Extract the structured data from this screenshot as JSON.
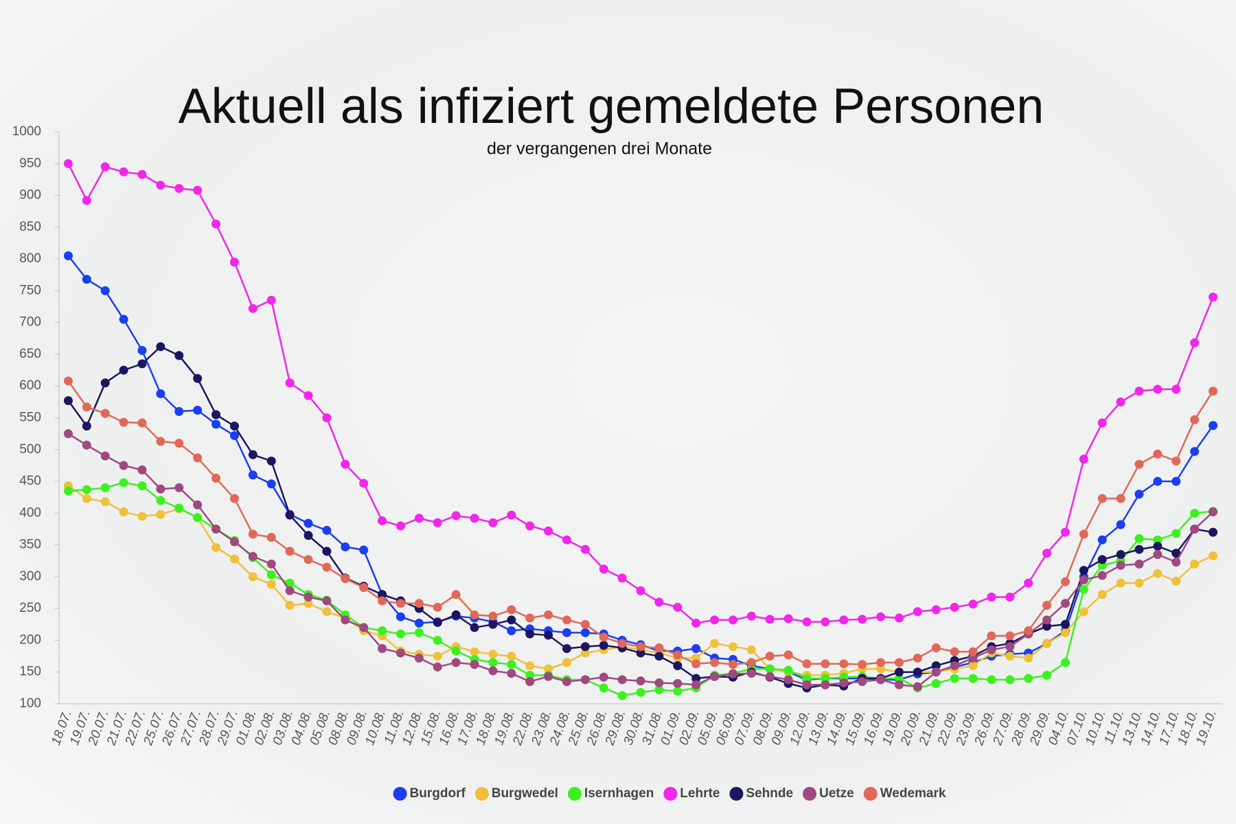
{
  "chart_data": {
    "type": "line",
    "title": "Aktuell als infiziert gemeldete Personen",
    "subtitle": "der vergangenen drei Monate",
    "categories": [
      "18.07.",
      "19.07.",
      "20.07.",
      "21.07.",
      "22.07.",
      "25.07.",
      "26.07.",
      "27.07.",
      "28.07.",
      "29.07.",
      "01.08.",
      "02.08.",
      "03.08.",
      "04.08.",
      "05.08.",
      "08.08.",
      "09.08.",
      "10.08.",
      "11.08.",
      "12.08.",
      "15.08.",
      "16.08.",
      "17.08.",
      "18.08.",
      "19.08.",
      "22.08.",
      "23.08.",
      "24.08.",
      "25.08.",
      "26.08.",
      "29.08.",
      "30.08.",
      "31.08.",
      "01.09.",
      "02.09.",
      "05.09.",
      "06.09.",
      "07.09.",
      "08.09.",
      "09.09.",
      "12.09.",
      "13.09.",
      "14.09.",
      "15.09.",
      "16.09.",
      "19.09.",
      "20.09.",
      "21.09.",
      "22.09.",
      "23.09.",
      "26.09.",
      "27.09.",
      "28.09.",
      "29.09.",
      "04.10.",
      "07.10.",
      "10.10.",
      "11.10.",
      "13.10.",
      "14.10.",
      "17.10.",
      "18.10.",
      "19.10."
    ],
    "series": [
      {
        "name": "Burgdorf",
        "color": "#1a3ef0",
        "values": [
          805,
          768,
          750,
          705,
          656,
          588,
          560,
          562,
          540,
          522,
          460,
          446,
          398,
          384,
          373,
          347,
          342,
          272,
          237,
          227,
          229,
          238,
          235,
          229,
          215,
          218,
          215,
          212,
          212,
          210,
          200,
          193,
          183,
          183,
          187,
          172,
          170,
          160,
          155,
          150,
          138,
          140,
          140,
          140,
          138,
          138,
          147,
          150,
          158,
          165,
          175,
          178,
          180,
          195,
          215,
          300,
          358,
          382,
          430,
          450,
          450,
          497,
          538
        ]
      },
      {
        "name": "Burgwedel",
        "color": "#f0c03a",
        "values": [
          443,
          423,
          418,
          402,
          395,
          398,
          407,
          393,
          346,
          328,
          300,
          288,
          255,
          258,
          245,
          235,
          215,
          207,
          183,
          178,
          175,
          190,
          182,
          178,
          175,
          160,
          155,
          165,
          180,
          185,
          190,
          185,
          180,
          172,
          172,
          195,
          190,
          185,
          155,
          150,
          145,
          145,
          148,
          155,
          155,
          150,
          150,
          150,
          155,
          160,
          180,
          175,
          172,
          195,
          212,
          245,
          272,
          290,
          290,
          305,
          293,
          320,
          333
        ]
      },
      {
        "name": "Isernhagen",
        "color": "#3cf020",
        "values": [
          435,
          437,
          440,
          448,
          443,
          420,
          408,
          393,
          375,
          357,
          330,
          303,
          290,
          272,
          263,
          240,
          220,
          215,
          210,
          212,
          200,
          183,
          170,
          165,
          162,
          145,
          145,
          138,
          138,
          125,
          113,
          118,
          122,
          120,
          125,
          145,
          148,
          155,
          155,
          153,
          140,
          140,
          142,
          143,
          140,
          140,
          125,
          132,
          140,
          140,
          138,
          138,
          140,
          145,
          165,
          280,
          318,
          325,
          360,
          358,
          368,
          400,
          403
        ]
      },
      {
        "name": "Lehrte",
        "color": "#f026e8",
        "values": [
          950,
          892,
          945,
          937,
          933,
          916,
          911,
          908,
          855,
          795,
          722,
          735,
          605,
          585,
          550,
          477,
          447,
          388,
          380,
          392,
          385,
          396,
          392,
          385,
          397,
          380,
          372,
          358,
          343,
          312,
          298,
          278,
          260,
          252,
          227,
          232,
          232,
          238,
          233,
          234,
          229,
          229,
          232,
          233,
          237,
          235,
          245,
          248,
          252,
          257,
          268,
          268,
          290,
          337,
          370,
          485,
          542,
          575,
          592,
          595,
          595,
          668,
          740
        ]
      },
      {
        "name": "Sehnde",
        "color": "#1c1660",
        "values": [
          577,
          537,
          605,
          625,
          635,
          662,
          648,
          612,
          555,
          537,
          492,
          482,
          397,
          365,
          340,
          298,
          285,
          272,
          262,
          250,
          228,
          240,
          220,
          225,
          232,
          210,
          208,
          187,
          190,
          192,
          188,
          180,
          175,
          160,
          140,
          143,
          142,
          150,
          142,
          132,
          125,
          130,
          128,
          140,
          140,
          150,
          150,
          160,
          168,
          175,
          190,
          195,
          210,
          222,
          225,
          310,
          327,
          335,
          343,
          348,
          337,
          375,
          370
        ]
      },
      {
        "name": "Uetze",
        "color": "#a04880",
        "values": [
          525,
          507,
          490,
          475,
          468,
          438,
          440,
          413,
          375,
          355,
          332,
          320,
          278,
          268,
          262,
          232,
          220,
          187,
          180,
          172,
          158,
          165,
          162,
          152,
          148,
          135,
          143,
          135,
          138,
          142,
          138,
          136,
          133,
          132,
          130,
          143,
          147,
          148,
          143,
          138,
          130,
          130,
          133,
          135,
          138,
          130,
          127,
          150,
          160,
          172,
          185,
          190,
          210,
          232,
          258,
          295,
          302,
          318,
          320,
          335,
          323,
          375,
          402
        ]
      },
      {
        "name": "Wedemark",
        "color": "#e06858",
        "values": [
          608,
          567,
          557,
          543,
          542,
          513,
          510,
          487,
          455,
          423,
          367,
          362,
          340,
          327,
          315,
          297,
          283,
          262,
          258,
          258,
          252,
          272,
          240,
          238,
          248,
          235,
          240,
          232,
          225,
          205,
          195,
          190,
          188,
          177,
          163,
          165,
          162,
          165,
          175,
          177,
          163,
          163,
          163,
          162,
          165,
          165,
          172,
          188,
          182,
          182,
          207,
          207,
          215,
          255,
          292,
          367,
          423,
          423,
          477,
          493,
          482,
          547,
          592
        ]
      }
    ],
    "ylim": [
      100,
      1000
    ],
    "yticks": [
      100,
      150,
      200,
      250,
      300,
      350,
      400,
      450,
      500,
      550,
      600,
      650,
      700,
      750,
      800,
      850,
      900,
      950,
      1000
    ],
    "legend": "bottom"
  }
}
